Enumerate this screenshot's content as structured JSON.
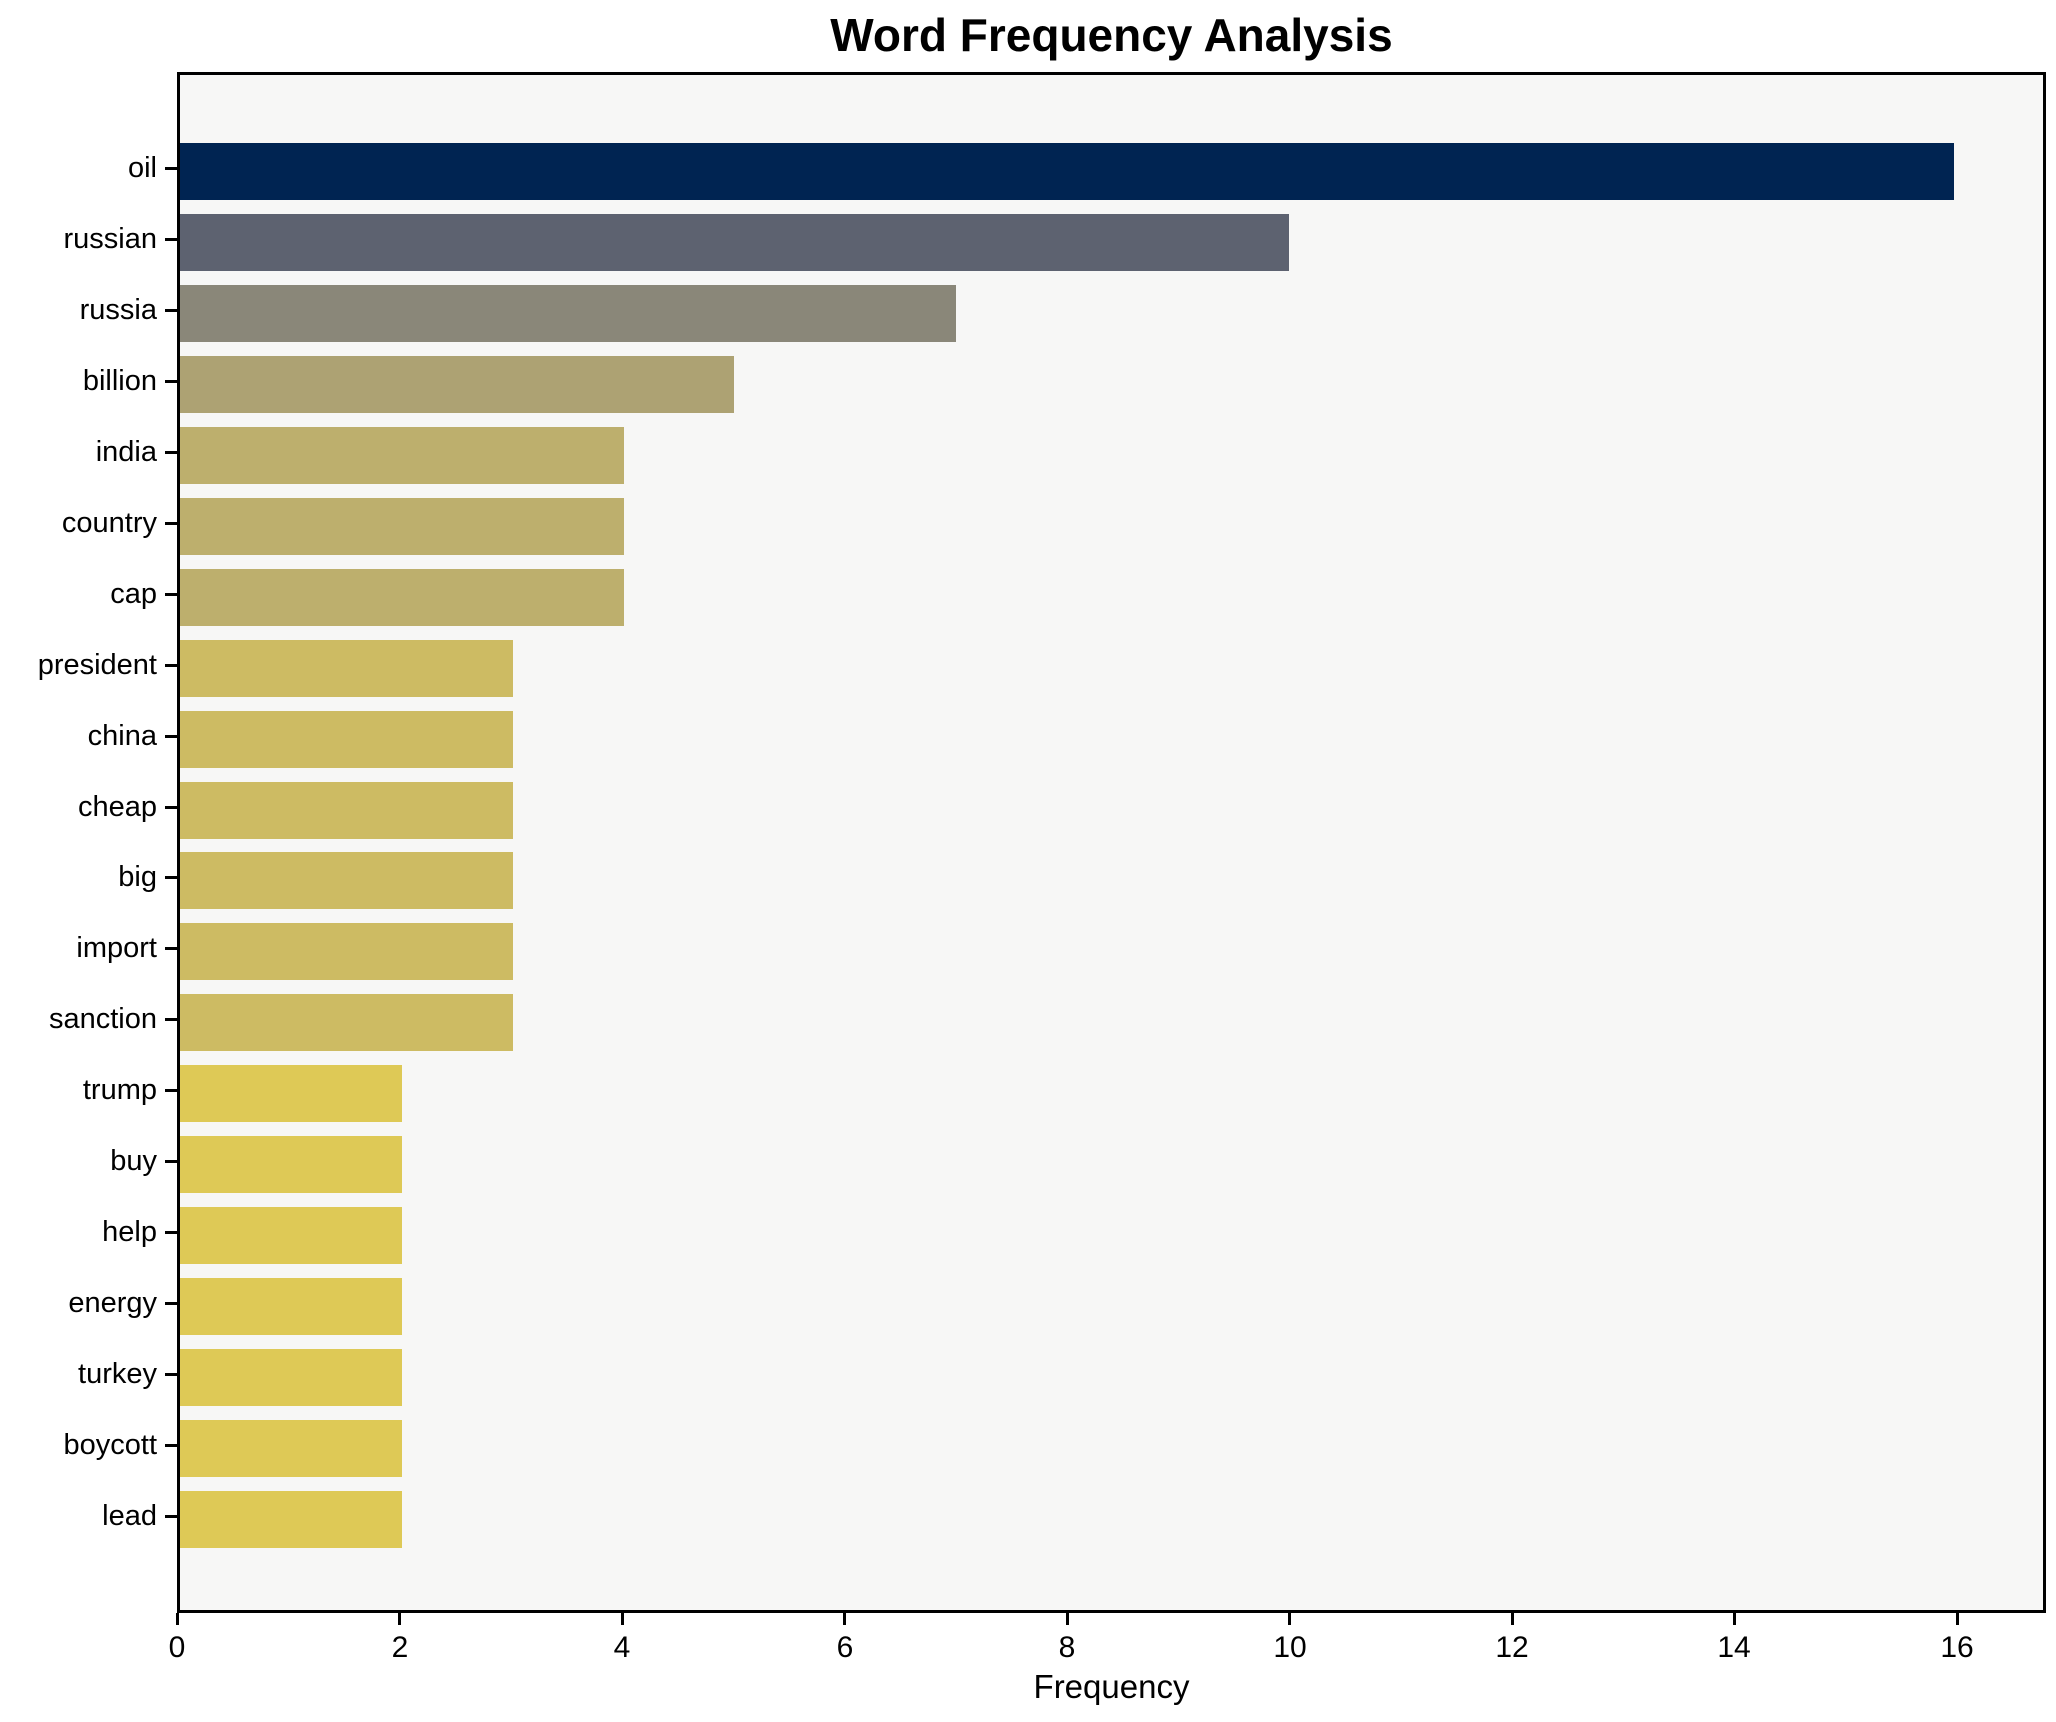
{
  "title": "Word Frequency Analysis",
  "chart_data": {
    "type": "bar",
    "orientation": "horizontal",
    "title": "Word Frequency Analysis",
    "xlabel": "Frequency",
    "ylabel": "",
    "categories": [
      "oil",
      "russian",
      "russia",
      "billion",
      "india",
      "country",
      "cap",
      "president",
      "china",
      "cheap",
      "big",
      "import",
      "sanction",
      "trump",
      "buy",
      "help",
      "energy",
      "turkey",
      "boycott",
      "lead"
    ],
    "values": [
      16,
      10,
      7,
      5,
      4,
      4,
      4,
      3,
      3,
      3,
      3,
      3,
      3,
      2,
      2,
      2,
      2,
      2,
      2,
      2
    ],
    "bar_colors": [
      "#002452",
      "#5d6270",
      "#8a8779",
      "#ada273",
      "#bdaf6d",
      "#bdaf6d",
      "#bdaf6d",
      "#cdbb63",
      "#cdbb63",
      "#cdbb63",
      "#cdbb63",
      "#cdbb63",
      "#cdbb63",
      "#dec956",
      "#dec956",
      "#dec956",
      "#dec956",
      "#dec956",
      "#dec956",
      "#dec956"
    ],
    "xlim": [
      0,
      16.8
    ],
    "xticks": [
      0,
      2,
      4,
      6,
      8,
      10,
      12,
      14,
      16
    ],
    "grid": false,
    "legend": false,
    "plot_background": "#f7f7f6",
    "figure_background": "#ffffff",
    "bar_height_fraction": 0.8
  }
}
